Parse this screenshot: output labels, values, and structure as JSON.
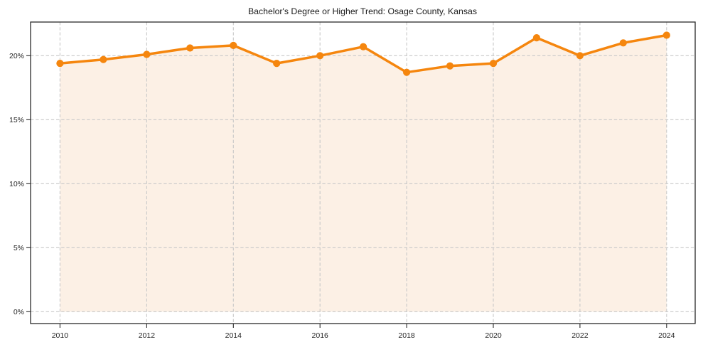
{
  "chart_data": {
    "type": "line",
    "title": "Bachelor's Degree or Higher Trend: Osage County, Kansas",
    "series_name": "Bachelor's Degree or Higher (%)",
    "x": [
      2010,
      2011,
      2012,
      2013,
      2014,
      2015,
      2016,
      2017,
      2018,
      2019,
      2020,
      2021,
      2022,
      2023,
      2024
    ],
    "values": [
      19.4,
      19.7,
      20.1,
      20.6,
      20.8,
      19.4,
      20.0,
      20.7,
      18.7,
      19.2,
      19.4,
      21.4,
      20.0,
      21.0,
      21.6
    ],
    "unit": "%",
    "xlabel": "",
    "ylabel": "",
    "x_ticks": [
      2010,
      2012,
      2014,
      2016,
      2018,
      2020,
      2022,
      2024
    ],
    "x_tick_labels": [
      "2010",
      "2012",
      "2014",
      "2016",
      "2018",
      "2020",
      "2022",
      "2024"
    ],
    "y_ticks": [
      0,
      5,
      10,
      15,
      20
    ],
    "y_tick_labels": [
      "0%",
      "5%",
      "10%",
      "15%",
      "20%"
    ],
    "xlim": [
      2009.32,
      2024.66
    ],
    "ylim": [
      -0.93,
      22.63
    ],
    "grid": true,
    "grid_style": "dashed",
    "legend_position": "none",
    "area_fill_to": 0,
    "colors": {
      "line": "#f5860e",
      "marker": "#f5860e",
      "fill": "#fcf0e5",
      "grid": "#c8c8c8",
      "axis": "#2a2a2a",
      "text": "#262626",
      "title": "#1a1a1a",
      "background": "#ffffff"
    }
  }
}
